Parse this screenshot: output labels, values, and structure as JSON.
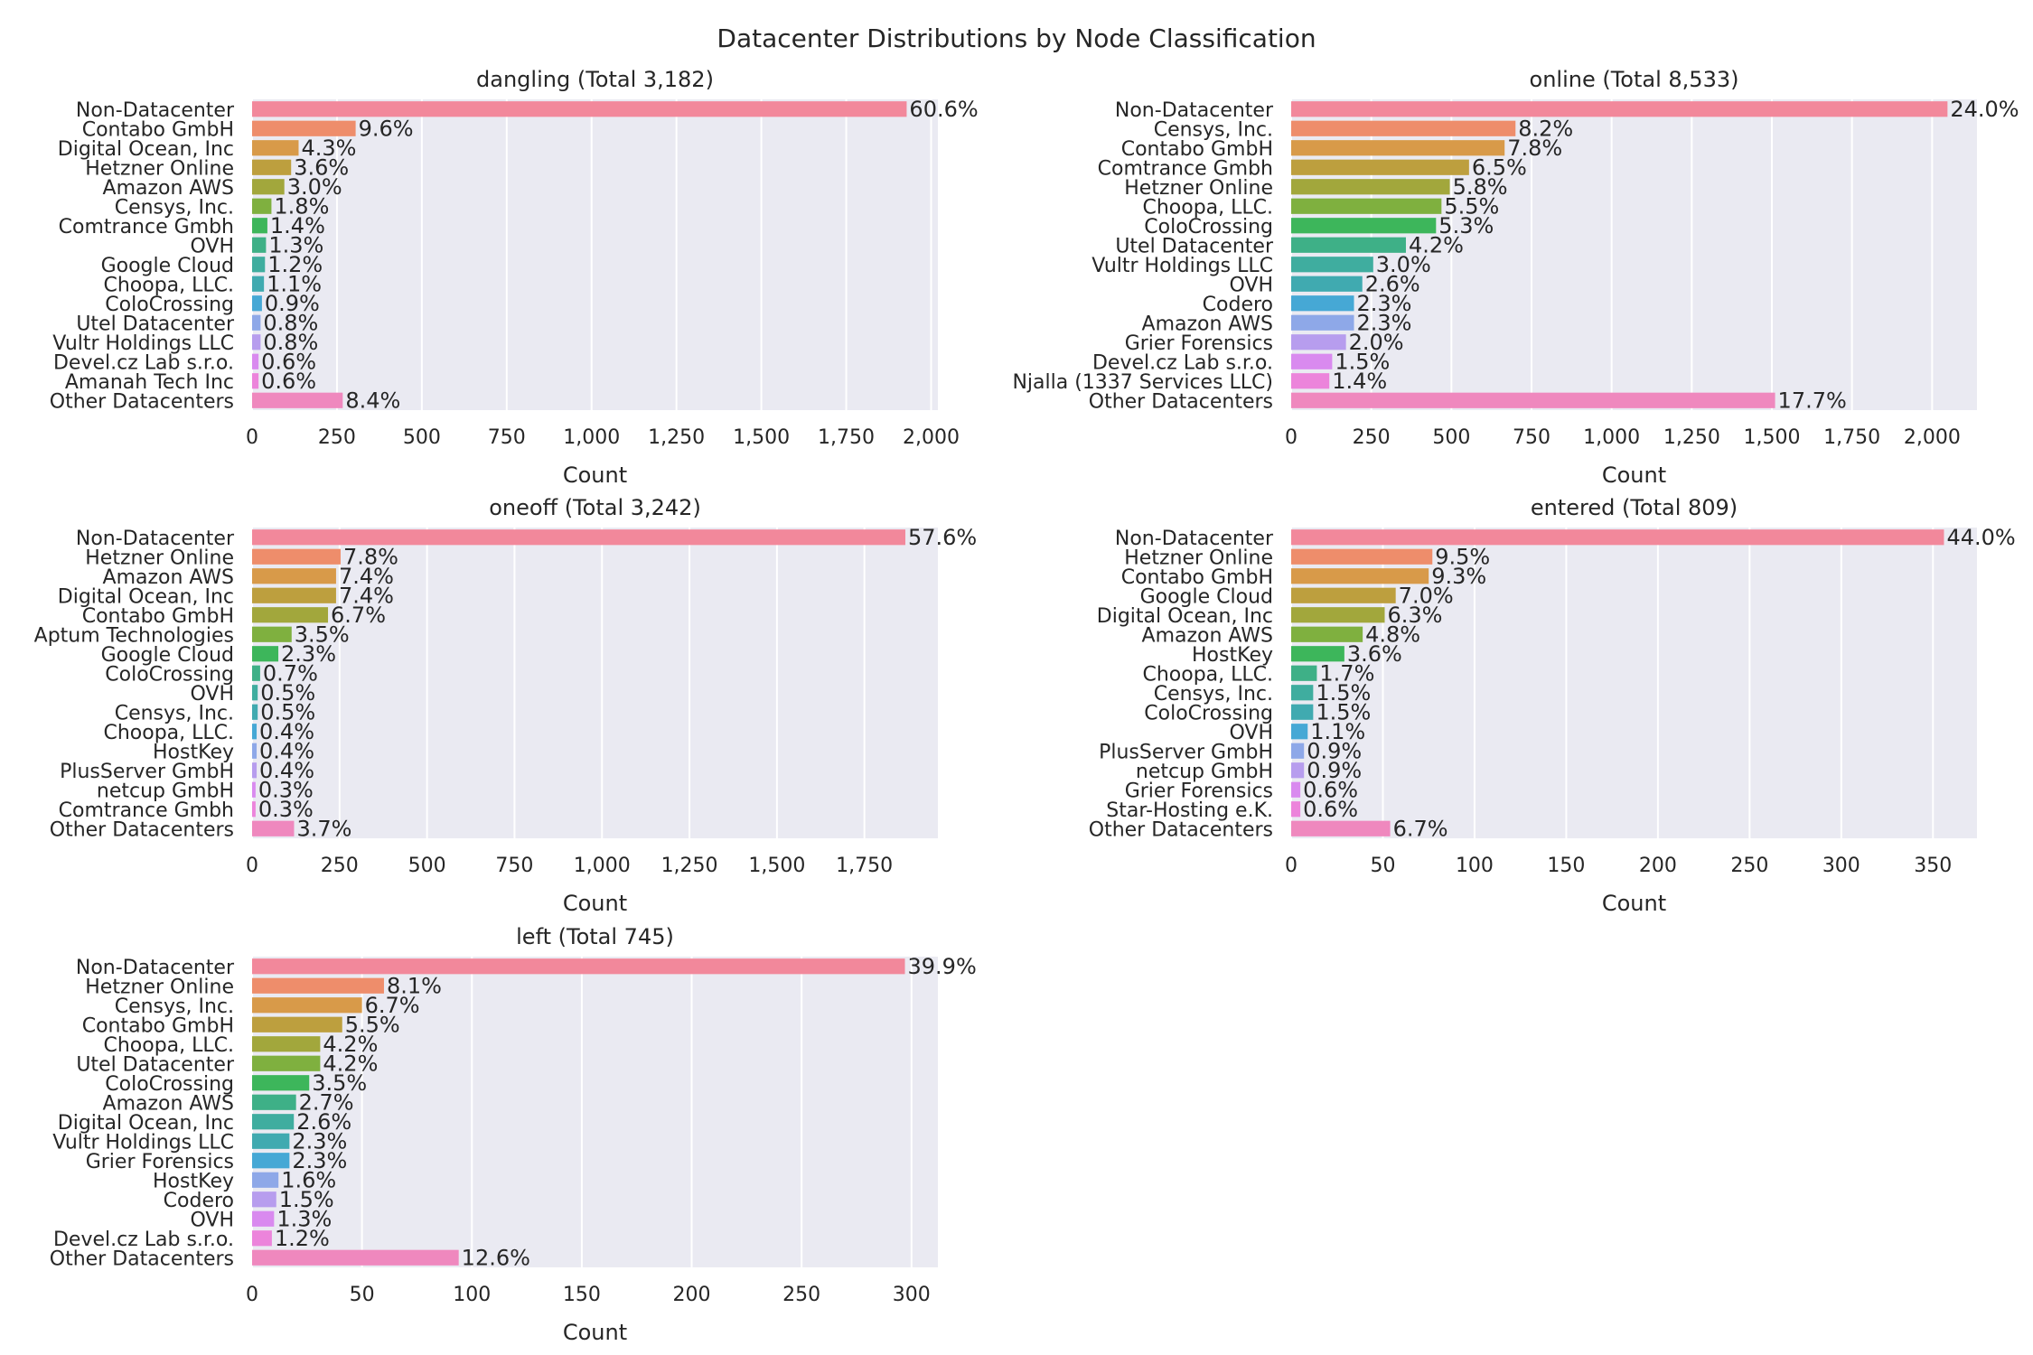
{
  "suptitle": "Datacenter Distributions by Node Classification",
  "colors": [
    "#f2889b",
    "#ee8d6b",
    "#d89a49",
    "#bd9f3e",
    "#a2a73c",
    "#7fb03f",
    "#3db65b",
    "#3eb087",
    "#3fad9f",
    "#40aab0",
    "#46a8d5",
    "#8ea8e8",
    "#b79dee",
    "#d98aef",
    "#ec84db",
    "#ef88be"
  ],
  "chart_data": [
    {
      "type": "bar",
      "orientation": "horizontal",
      "title": "dangling (Total 3,182)",
      "xlabel": "Count",
      "xlim": [
        0,
        2020
      ],
      "xticks": [
        0,
        250,
        500,
        750,
        1000,
        1250,
        1500,
        1750,
        2000
      ],
      "xtick_labels": [
        "0",
        "250",
        "500",
        "750",
        "1,000",
        "1,250",
        "1,500",
        "1,750",
        "2,000"
      ],
      "grid": true,
      "categories": [
        "Non-Datacenter",
        "Contabo GmbH",
        "Digital Ocean, Inc",
        "Hetzner Online",
        "Amazon AWS",
        "Censys, Inc.",
        "Comtrance Gmbh",
        "OVH",
        "Google Cloud",
        "Choopa, LLC.",
        "ColoCrossing",
        "Utel Datacenter",
        "Vultr Holdings LLC",
        "Devel.cz Lab s.r.o.",
        "Amanah Tech Inc",
        "Other Datacenters"
      ],
      "values": [
        1928,
        305,
        137,
        115,
        95,
        57,
        45,
        41,
        38,
        35,
        29,
        25,
        25,
        19,
        19,
        267
      ],
      "labels": [
        "60.6%",
        "9.6%",
        "4.3%",
        "3.6%",
        "3.0%",
        "1.8%",
        "1.4%",
        "1.3%",
        "1.2%",
        "1.1%",
        "0.9%",
        "0.8%",
        "0.8%",
        "0.6%",
        "0.6%",
        "8.4%"
      ]
    },
    {
      "type": "bar",
      "orientation": "horizontal",
      "title": "online (Total 8,533)",
      "xlabel": "Count",
      "xlim": [
        0,
        2140
      ],
      "xticks": [
        0,
        250,
        500,
        750,
        1000,
        1250,
        1500,
        1750,
        2000
      ],
      "xtick_labels": [
        "0",
        "250",
        "500",
        "750",
        "1,000",
        "1,250",
        "1,500",
        "1,750",
        "2,000"
      ],
      "grid": true,
      "categories": [
        "Non-Datacenter",
        "Censys, Inc.",
        "Contabo GmbH",
        "Comtrance Gmbh",
        "Hetzner Online",
        "Choopa, LLC.",
        "ColoCrossing",
        "Utel Datacenter",
        "Vultr Holdings LLC",
        "OVH",
        "Codero",
        "Amazon AWS",
        "Grier Forensics",
        "Devel.cz Lab s.r.o.",
        "Njalla (1337 Services LLC)",
        "Other Datacenters"
      ],
      "values": [
        2048,
        700,
        666,
        555,
        495,
        469,
        452,
        358,
        256,
        222,
        196,
        196,
        171,
        128,
        119,
        1510
      ],
      "labels": [
        "24.0%",
        "8.2%",
        "7.8%",
        "6.5%",
        "5.8%",
        "5.5%",
        "5.3%",
        "4.2%",
        "3.0%",
        "2.6%",
        "2.3%",
        "2.3%",
        "2.0%",
        "1.5%",
        "1.4%",
        "17.7%"
      ]
    },
    {
      "type": "bar",
      "orientation": "horizontal",
      "title": "oneoff (Total 3,242)",
      "xlabel": "Count",
      "xlim": [
        0,
        1960
      ],
      "xticks": [
        0,
        250,
        500,
        750,
        1000,
        1250,
        1500,
        1750
      ],
      "xtick_labels": [
        "0",
        "250",
        "500",
        "750",
        "1,000",
        "1,250",
        "1,500",
        "1,750"
      ],
      "grid": true,
      "categories": [
        "Non-Datacenter",
        "Hetzner Online",
        "Amazon AWS",
        "Digital Ocean, Inc",
        "Contabo GmbH",
        "Aptum Technologies",
        "Google Cloud",
        "ColoCrossing",
        "OVH",
        "Censys, Inc.",
        "Choopa, LLC.",
        "HostKey",
        "PlusServer GmbH",
        "netcup GmbH",
        "Comtrance Gmbh",
        "Other Datacenters"
      ],
      "values": [
        1867,
        253,
        240,
        240,
        217,
        113,
        75,
        23,
        16,
        16,
        13,
        13,
        13,
        10,
        10,
        120
      ],
      "labels": [
        "57.6%",
        "7.8%",
        "7.4%",
        "7.4%",
        "6.7%",
        "3.5%",
        "2.3%",
        "0.7%",
        "0.5%",
        "0.5%",
        "0.4%",
        "0.4%",
        "0.4%",
        "0.3%",
        "0.3%",
        "3.7%"
      ]
    },
    {
      "type": "bar",
      "orientation": "horizontal",
      "title": "entered (Total 809)",
      "xlabel": "Count",
      "xlim": [
        0,
        374
      ],
      "xticks": [
        0,
        50,
        100,
        150,
        200,
        250,
        300,
        350
      ],
      "xtick_labels": [
        "0",
        "50",
        "100",
        "150",
        "200",
        "250",
        "300",
        "350"
      ],
      "grid": true,
      "categories": [
        "Non-Datacenter",
        "Hetzner Online",
        "Contabo GmbH",
        "Google Cloud",
        "Digital Ocean, Inc",
        "Amazon AWS",
        "HostKey",
        "Choopa, LLC.",
        "Censys, Inc.",
        "ColoCrossing",
        "OVH",
        "PlusServer GmbH",
        "netcup GmbH",
        "Grier Forensics",
        "Star-Hosting e.K.",
        "Other Datacenters"
      ],
      "values": [
        356,
        77,
        75,
        57,
        51,
        39,
        29,
        14,
        12,
        12,
        9,
        7,
        7,
        5,
        5,
        54
      ],
      "labels": [
        "44.0%",
        "9.5%",
        "9.3%",
        "7.0%",
        "6.3%",
        "4.8%",
        "3.6%",
        "1.7%",
        "1.5%",
        "1.5%",
        "1.1%",
        "0.9%",
        "0.9%",
        "0.6%",
        "0.6%",
        "6.7%"
      ]
    },
    {
      "type": "bar",
      "orientation": "horizontal",
      "title": "left (Total 745)",
      "xlabel": "Count",
      "xlim": [
        0,
        312
      ],
      "xticks": [
        0,
        50,
        100,
        150,
        200,
        250,
        300
      ],
      "xtick_labels": [
        "0",
        "50",
        "100",
        "150",
        "200",
        "250",
        "300"
      ],
      "grid": true,
      "categories": [
        "Non-Datacenter",
        "Hetzner Online",
        "Censys, Inc.",
        "Contabo GmbH",
        "Choopa, LLC.",
        "Utel Datacenter",
        "ColoCrossing",
        "Amazon AWS",
        "Digital Ocean, Inc",
        "Vultr Holdings LLC",
        "Grier Forensics",
        "HostKey",
        "Codero",
        "OVH",
        "Devel.cz Lab s.r.o.",
        "Other Datacenters"
      ],
      "values": [
        297,
        60,
        50,
        41,
        31,
        31,
        26,
        20,
        19,
        17,
        17,
        12,
        11,
        10,
        9,
        94
      ],
      "labels": [
        "39.9%",
        "8.1%",
        "6.7%",
        "5.5%",
        "4.2%",
        "4.2%",
        "3.5%",
        "2.7%",
        "2.6%",
        "2.3%",
        "2.3%",
        "1.6%",
        "1.5%",
        "1.3%",
        "1.2%",
        "12.6%"
      ]
    }
  ]
}
